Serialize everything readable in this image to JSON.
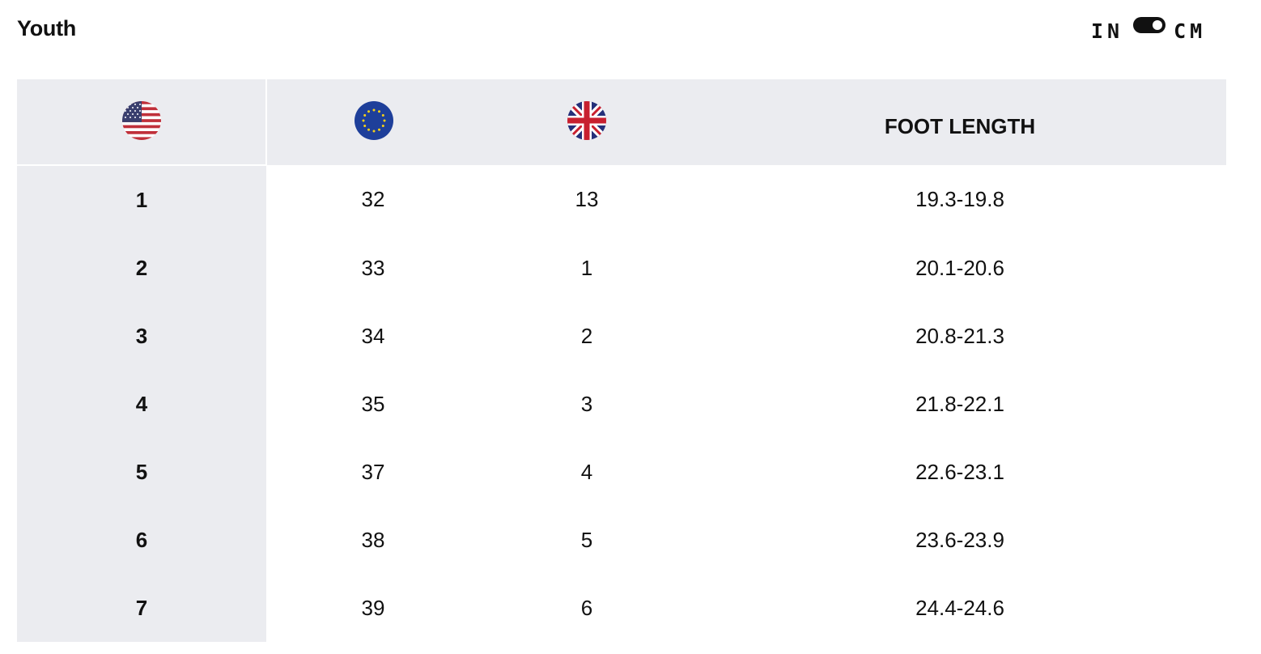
{
  "header": {
    "title": "Youth",
    "unit_toggle": {
      "left_label": "IN",
      "right_label": "CM",
      "selected": "CM"
    }
  },
  "table": {
    "columns": [
      {
        "key": "us",
        "icon": "us-flag-icon"
      },
      {
        "key": "eu",
        "icon": "eu-flag-icon"
      },
      {
        "key": "uk",
        "icon": "uk-flag-icon"
      },
      {
        "key": "foot",
        "label": "FOOT LENGTH"
      }
    ],
    "rows": [
      {
        "us": "1",
        "eu": "32",
        "uk": "13",
        "foot": "19.3-19.8"
      },
      {
        "us": "2",
        "eu": "33",
        "uk": "1",
        "foot": "20.1-20.6"
      },
      {
        "us": "3",
        "eu": "34",
        "uk": "2",
        "foot": "20.8-21.3"
      },
      {
        "us": "4",
        "eu": "35",
        "uk": "3",
        "foot": "21.8-22.1"
      },
      {
        "us": "5",
        "eu": "37",
        "uk": "4",
        "foot": "22.6-23.1"
      },
      {
        "us": "6",
        "eu": "38",
        "uk": "5",
        "foot": "23.6-23.9"
      },
      {
        "us": "7",
        "eu": "39",
        "uk": "6",
        "foot": "24.4-24.6"
      }
    ]
  },
  "colors": {
    "header_bg": "#ebecf0",
    "text": "#111111",
    "toggle": "#111111"
  }
}
